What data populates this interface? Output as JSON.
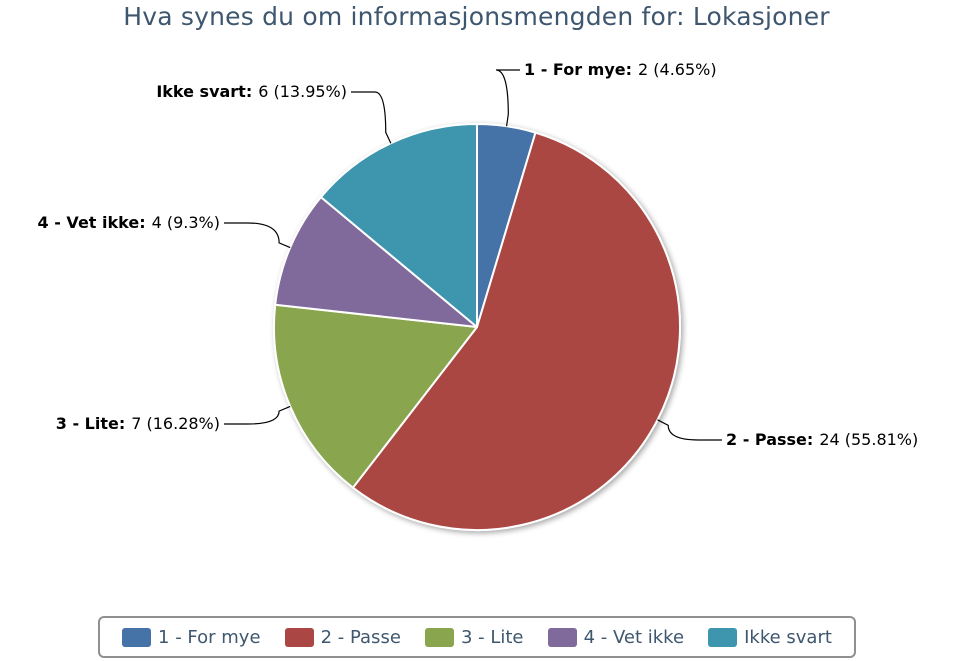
{
  "chart_data": {
    "type": "pie",
    "title": "Hva synes du om informasjonsmengden for: Lokasjoner",
    "slices": [
      {
        "name": "1 - For mye",
        "value": 2,
        "percent": "4.65%",
        "color": "#4572a7"
      },
      {
        "name": "2 - Passe",
        "value": 24,
        "percent": "55.81%",
        "color": "#aa4643"
      },
      {
        "name": "3 - Lite",
        "value": 7,
        "percent": "16.28%",
        "color": "#89a54e"
      },
      {
        "name": "4 - Vet ikke",
        "value": 4,
        "percent": "9.3%",
        "color": "#80699b"
      },
      {
        "name": "Ikke svart",
        "value": 6,
        "percent": "13.95%",
        "color": "#3d96ae"
      }
    ],
    "legend_position": "bottom"
  }
}
